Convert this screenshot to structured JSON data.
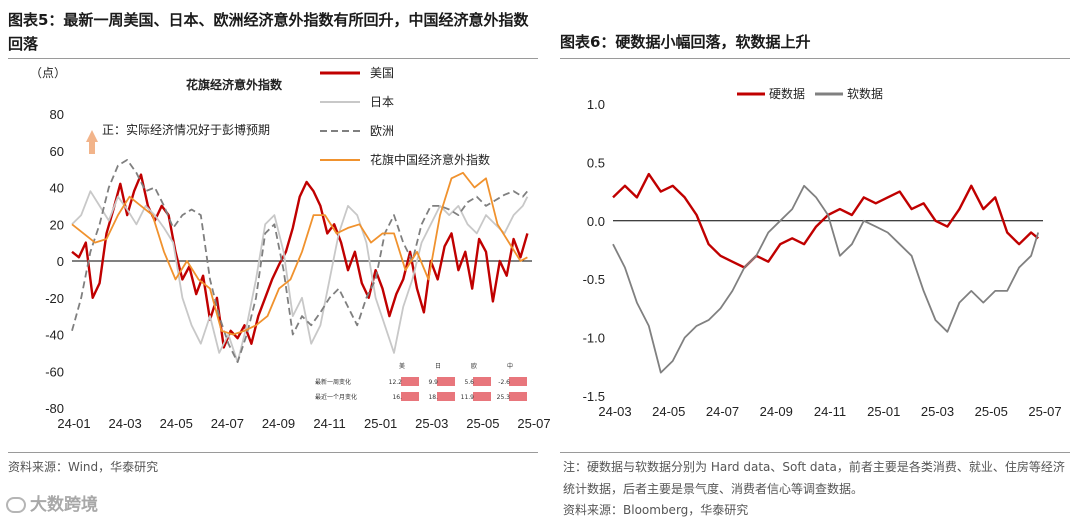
{
  "left_panel": {
    "title": "图表5：最新一周美国、日本、欧洲经济意外指数有所回升，中国经济意外指数回落",
    "source": "资料来源：Wind，华泰研究",
    "unit_label": "（点）",
    "inset_title": "花旗经济意外指数",
    "annotation": "正：实际经济情况好于彭博预期",
    "table": {
      "headers": [
        "美",
        "日",
        "欧",
        "中"
      ],
      "rows": [
        {
          "label": "最新一周变化",
          "values": [
            "12.2",
            "9.9",
            "5.6",
            "-2.6"
          ]
        },
        {
          "label": "最近一个月变化",
          "values": [
            "16.",
            "18.",
            "11.9",
            "25.3"
          ]
        }
      ]
    }
  },
  "right_panel": {
    "title": "图表6：硬数据小幅回落，软数据上升",
    "note": "注：硬数据与软数据分别为 Hard data、Soft data，前者主要是各类消费、就业、住房等经济统计数据，后者主要是景气度、消费者信心等调查数据。",
    "source": "资料来源：Bloomberg，华泰研究"
  },
  "watermark": "大数跨境",
  "colors": {
    "red": "#c00000",
    "gray": "#808080",
    "lightgray": "#c8c8c8",
    "dashgray": "#7f7f7f",
    "orange": "#f0922e"
  },
  "chart_data": [
    {
      "type": "line",
      "xlabel": "",
      "ylabel": "（点）",
      "xticks": [
        "24-01",
        "24-03",
        "24-05",
        "24-07",
        "24-09",
        "24-11",
        "25-01",
        "25-03",
        "25-05",
        "25-07"
      ],
      "xlim": [
        0,
        20
      ],
      "ylim": [
        -80,
        80
      ],
      "yticks": [
        -80,
        -60,
        -40,
        -20,
        0,
        20,
        40,
        60,
        80
      ],
      "legend_position": "top-right",
      "series": [
        {
          "name": "美国",
          "style": "solid",
          "color": "#c00000",
          "x": [
            0,
            0.3,
            0.6,
            0.9,
            1.2,
            1.5,
            1.8,
            2.1,
            2.4,
            2.7,
            3,
            3.3,
            3.6,
            3.9,
            4.2,
            4.5,
            4.8,
            5.1,
            5.4,
            5.7,
            6,
            6.3,
            6.6,
            6.9,
            7.2,
            7.5,
            7.8,
            8.1,
            8.4,
            8.7,
            9,
            9.3,
            9.6,
            9.9,
            10.2,
            10.5,
            10.8,
            11.1,
            11.4,
            11.7,
            12,
            12.3,
            12.6,
            12.9,
            13.2,
            13.5,
            13.8,
            14.1,
            14.4,
            14.7,
            15,
            15.3,
            15.6,
            15.9,
            16.2,
            16.5,
            16.8,
            17.1,
            17.4,
            17.7,
            18,
            18.3,
            18.6,
            18.9,
            19.2,
            19.5,
            19.8
          ],
          "y": [
            5,
            2,
            10,
            -20,
            -12,
            15,
            28,
            42,
            25,
            38,
            47,
            30,
            22,
            30,
            25,
            5,
            -10,
            -3,
            -18,
            -8,
            -32,
            -20,
            -47,
            -38,
            -42,
            -35,
            -45,
            -30,
            -20,
            -10,
            -2,
            5,
            18,
            35,
            43,
            38,
            30,
            15,
            20,
            10,
            -5,
            5,
            -12,
            -20,
            -5,
            -15,
            -30,
            -18,
            -10,
            5,
            -15,
            -28,
            0,
            -10,
            8,
            15,
            -5,
            5,
            -15,
            12,
            5,
            -22,
            0,
            -8,
            12,
            2,
            15
          ]
        },
        {
          "name": "日本",
          "style": "solid",
          "color": "#c8c8c8",
          "x": [
            0,
            0.4,
            0.8,
            1.2,
            1.6,
            2,
            2.4,
            2.8,
            3.2,
            3.6,
            4,
            4.4,
            4.8,
            5.2,
            5.6,
            6,
            6.4,
            6.8,
            7.2,
            7.6,
            8,
            8.4,
            8.8,
            9.2,
            9.6,
            10,
            10.4,
            10.8,
            11.2,
            11.6,
            12,
            12.4,
            12.8,
            13.2,
            13.6,
            14,
            14.4,
            14.8,
            15.2,
            15.6,
            16,
            16.4,
            16.8,
            17.2,
            17.6,
            18,
            18.4,
            18.8,
            19.2,
            19.6,
            19.8
          ],
          "y": [
            20,
            25,
            38,
            30,
            22,
            35,
            28,
            20,
            30,
            25,
            18,
            10,
            -20,
            -35,
            -45,
            -30,
            -50,
            -40,
            -55,
            -35,
            -10,
            20,
            25,
            5,
            -30,
            -20,
            -45,
            -35,
            -10,
            15,
            30,
            25,
            10,
            -20,
            -35,
            -50,
            -25,
            -10,
            10,
            20,
            30,
            25,
            30,
            20,
            15,
            25,
            20,
            15,
            25,
            30,
            35
          ]
        },
        {
          "name": "欧洲",
          "style": "dashed",
          "color": "#7f7f7f",
          "x": [
            0,
            0.4,
            0.8,
            1.2,
            1.6,
            2,
            2.4,
            2.8,
            3.2,
            3.6,
            4,
            4.4,
            4.8,
            5.2,
            5.6,
            6,
            6.4,
            6.8,
            7.2,
            7.6,
            8,
            8.4,
            8.8,
            9.2,
            9.6,
            10,
            10.4,
            10.8,
            11.2,
            11.6,
            12,
            12.4,
            12.8,
            13.2,
            13.6,
            14,
            14.4,
            14.8,
            15.2,
            15.6,
            16,
            16.4,
            16.8,
            17.2,
            17.6,
            18,
            18.4,
            18.8,
            19.2,
            19.6,
            19.8
          ],
          "y": [
            -38,
            -20,
            5,
            20,
            40,
            52,
            55,
            48,
            38,
            40,
            30,
            18,
            25,
            28,
            25,
            -10,
            -30,
            -45,
            -55,
            -40,
            -20,
            15,
            20,
            -5,
            -40,
            -30,
            -35,
            -28,
            -20,
            -15,
            -25,
            -35,
            -20,
            -10,
            15,
            25,
            10,
            0,
            20,
            30,
            30,
            28,
            25,
            32,
            35,
            30,
            33,
            36,
            38,
            35,
            38
          ]
        },
        {
          "name": "花旗中国经济意外指数",
          "style": "solid",
          "color": "#f0922e",
          "x": [
            0,
            0.5,
            1,
            1.5,
            2,
            2.5,
            3,
            3.5,
            4,
            4.5,
            5,
            5.5,
            6,
            6.5,
            7,
            7.5,
            8,
            8.5,
            9,
            9.5,
            10,
            10.5,
            11,
            11.5,
            12,
            12.5,
            13,
            13.5,
            14,
            14.5,
            15,
            15.5,
            16,
            16.5,
            17,
            17.5,
            18,
            18.5,
            19,
            19.5,
            19.8
          ],
          "y": [
            20,
            15,
            10,
            12,
            25,
            35,
            30,
            25,
            5,
            -10,
            0,
            -10,
            -15,
            -38,
            -40,
            -38,
            -35,
            -30,
            -15,
            -10,
            5,
            25,
            25,
            15,
            18,
            20,
            10,
            15,
            15,
            -5,
            5,
            -10,
            25,
            45,
            48,
            40,
            45,
            20,
            10,
            0,
            2
          ]
        }
      ]
    },
    {
      "type": "line",
      "xlabel": "",
      "ylabel": "",
      "xticks": [
        "24-03",
        "24-05",
        "24-07",
        "24-09",
        "24-11",
        "25-01",
        "25-03",
        "25-05",
        "25-07"
      ],
      "xlim": [
        0,
        18
      ],
      "ylim": [
        -1.5,
        1.0
      ],
      "yticks": [
        1.0,
        0.5,
        0.0,
        -0.5,
        -1.0,
        -1.5
      ],
      "legend_position": "top",
      "series": [
        {
          "name": "硬数据",
          "style": "solid",
          "color": "#c00000",
          "x": [
            0,
            0.5,
            1,
            1.5,
            2,
            2.5,
            3,
            3.5,
            4,
            4.5,
            5,
            5.5,
            6,
            6.5,
            7,
            7.5,
            8,
            8.5,
            9,
            9.5,
            10,
            10.5,
            11,
            11.5,
            12,
            12.5,
            13,
            13.5,
            14,
            14.5,
            15,
            15.5,
            16,
            16.5,
            17,
            17.5,
            17.8
          ],
          "y": [
            0.2,
            0.3,
            0.2,
            0.4,
            0.25,
            0.3,
            0.2,
            0.05,
            -0.2,
            -0.3,
            -0.35,
            -0.4,
            -0.3,
            -0.35,
            -0.2,
            -0.15,
            -0.2,
            -0.05,
            0.05,
            0.1,
            0.05,
            0.2,
            0.15,
            0.2,
            0.25,
            0.1,
            0.15,
            0.0,
            -0.05,
            0.1,
            0.3,
            0.1,
            0.2,
            -0.1,
            -0.2,
            -0.1,
            -0.15
          ]
        },
        {
          "name": "软数据",
          "style": "solid",
          "color": "#808080",
          "x": [
            0,
            0.5,
            1,
            1.5,
            2,
            2.5,
            3,
            3.5,
            4,
            4.5,
            5,
            5.5,
            6,
            6.5,
            7,
            7.5,
            8,
            8.5,
            9,
            9.5,
            10,
            10.5,
            11,
            11.5,
            12,
            12.5,
            13,
            13.5,
            14,
            14.5,
            15,
            15.5,
            16,
            16.5,
            17,
            17.5,
            17.8
          ],
          "y": [
            -0.2,
            -0.4,
            -0.7,
            -0.9,
            -1.3,
            -1.2,
            -1.0,
            -0.9,
            -0.85,
            -0.75,
            -0.6,
            -0.4,
            -0.3,
            -0.1,
            0.0,
            0.1,
            0.3,
            0.2,
            0.05,
            -0.3,
            -0.2,
            0.0,
            -0.05,
            -0.1,
            -0.2,
            -0.3,
            -0.6,
            -0.85,
            -0.95,
            -0.7,
            -0.6,
            -0.7,
            -0.6,
            -0.6,
            -0.4,
            -0.3,
            -0.1
          ]
        }
      ]
    }
  ]
}
